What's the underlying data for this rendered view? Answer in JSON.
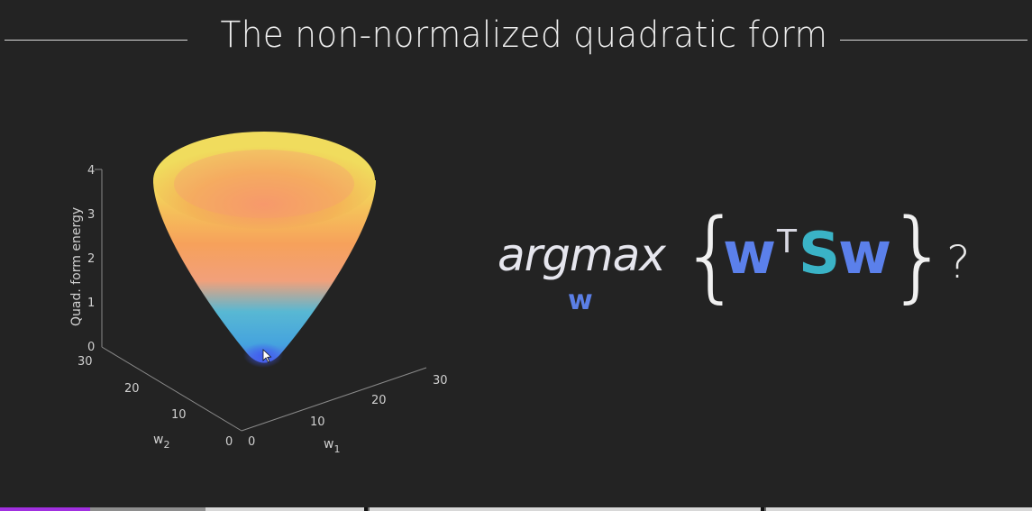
{
  "slide": {
    "title": "The non-normalized quadratic form"
  },
  "plot": {
    "z_axis_label": "Quad. form energy",
    "x_axis_label_base": "w",
    "x_axis_label_sub": "1",
    "y_axis_label_base": "w",
    "y_axis_label_sub": "2",
    "z_ticks": [
      "0",
      "1",
      "2",
      "3",
      "4"
    ],
    "x_ticks": [
      "0",
      "10",
      "20",
      "30"
    ],
    "y_ticks": [
      "0",
      "10",
      "20",
      "30"
    ],
    "surface_colors": {
      "top": "#f1e35e",
      "upper_mid": "#f7a65a",
      "middle": "#f59a72",
      "lower": "#46b5d6",
      "bottom": "#4e6ee6"
    },
    "cursor_icon": "mouse-pointer-icon"
  },
  "formula": {
    "operator": "argmax",
    "operator_subscript": "w",
    "open_brace": "{",
    "close_brace": "}",
    "vector_left": "w",
    "transpose": "T",
    "matrix": "S",
    "vector_right": "w",
    "question_mark": "?",
    "colors": {
      "vector": "#5b80eb",
      "matrix": "#3ab3c6"
    }
  },
  "progress_bar": {
    "played_fraction": 0.087,
    "buffered_fraction": 0.2
  }
}
